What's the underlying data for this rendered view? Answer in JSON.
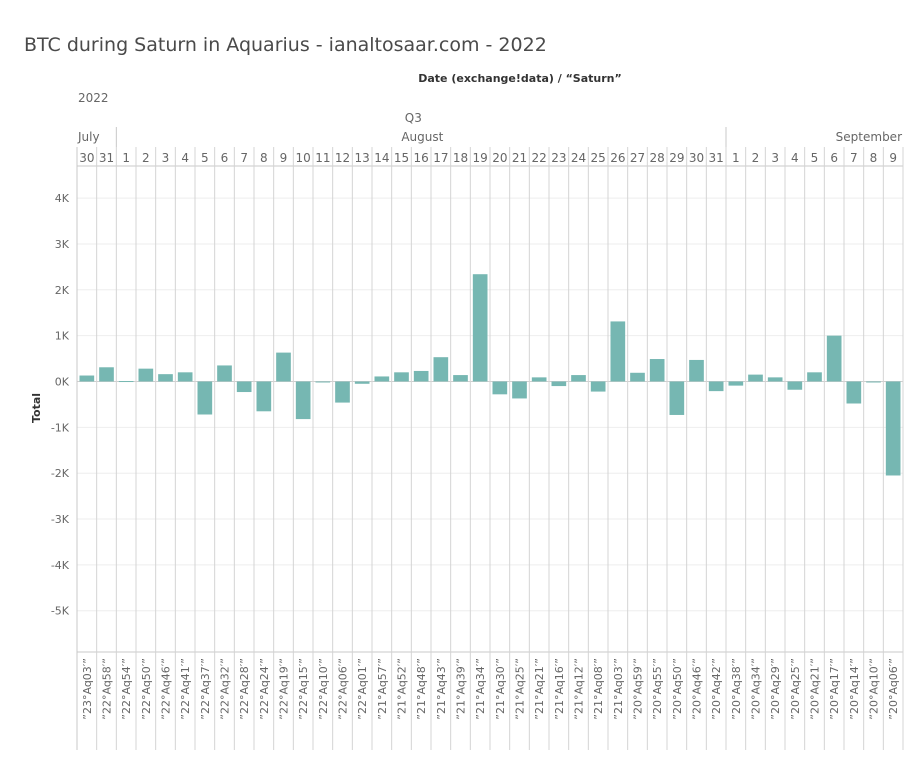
{
  "chart_data": {
    "type": "bar",
    "title": "BTC during Saturn in Aquarius - ianaltosaar.com - 2022",
    "header_label": "Date (exchange!data) / “Saturn”",
    "year_label": "2022",
    "quarter_label": "Q3",
    "months": [
      {
        "name": "July",
        "start": 0,
        "count": 2
      },
      {
        "name": "August",
        "start": 2,
        "count": 31
      },
      {
        "name": "September",
        "start": 33,
        "count": 9
      }
    ],
    "ylabel": "Total",
    "ylim": [
      -5900,
      4700
    ],
    "yticks": [
      4000,
      3000,
      2000,
      1000,
      0,
      -1000,
      -2000,
      -3000,
      -4000,
      -5000
    ],
    "ytick_labels": [
      "4K",
      "3K",
      "2K",
      "1K",
      "0K",
      "-1K",
      "-2K",
      "-3K",
      "-4K",
      "-5K"
    ],
    "gridlines": true,
    "bar_color": "#76b7b2",
    "days": [
      "30",
      "31",
      "1",
      "2",
      "3",
      "4",
      "5",
      "6",
      "7",
      "8",
      "9",
      "10",
      "11",
      "12",
      "13",
      "14",
      "15",
      "16",
      "17",
      "18",
      "19",
      "20",
      "21",
      "22",
      "23",
      "24",
      "25",
      "26",
      "27",
      "28",
      "29",
      "30",
      "31",
      "1",
      "2",
      "3",
      "4",
      "5",
      "6",
      "7",
      "8",
      "9"
    ],
    "categories": [
      "”23°Aq03′”",
      "”22°Aq58′”",
      "”22°Aq54′”",
      "”22°Aq50′”",
      "”22°Aq46′”",
      "”22°Aq41′”",
      "”22°Aq37′”",
      "”22°Aq32′”",
      "”22°Aq28′”",
      "”22°Aq24′”",
      "”22°Aq19′”",
      "”22°Aq15′”",
      "”22°Aq10′”",
      "”22°Aq06′”",
      "”22°Aq01′”",
      "”21°Aq57′”",
      "”21°Aq52′”",
      "”21°Aq48′”",
      "”21°Aq43′”",
      "”21°Aq39′”",
      "”21°Aq34′”",
      "”21°Aq30′”",
      "”21°Aq25′”",
      "”21°Aq21′”",
      "”21°Aq16′”",
      "”21°Aq12′”",
      "”21°Aq08′”",
      "”21°Aq03′”",
      "”20°Aq59′”",
      "”20°Aq55′”",
      "”20°Aq50′”",
      "”20°Aq46′”",
      "”20°Aq42′”",
      "”20°Aq38′”",
      "”20°Aq34′”",
      "”20°Aq29′”",
      "”20°Aq25′”",
      "”20°Aq21′”",
      "”20°Aq17′”",
      "”20°Aq14′”",
      "”20°Aq10′”",
      "”20°Aq06′”"
    ],
    "values": [
      130,
      310,
      10,
      280,
      160,
      200,
      -720,
      350,
      -230,
      -650,
      630,
      -820,
      -20,
      -460,
      -50,
      110,
      200,
      230,
      530,
      140,
      2340,
      -280,
      -370,
      90,
      -100,
      140,
      -220,
      1310,
      190,
      490,
      -730,
      470,
      -210,
      -90,
      150,
      90,
      -180,
      200,
      1000,
      -480,
      -20,
      -2050
    ]
  }
}
